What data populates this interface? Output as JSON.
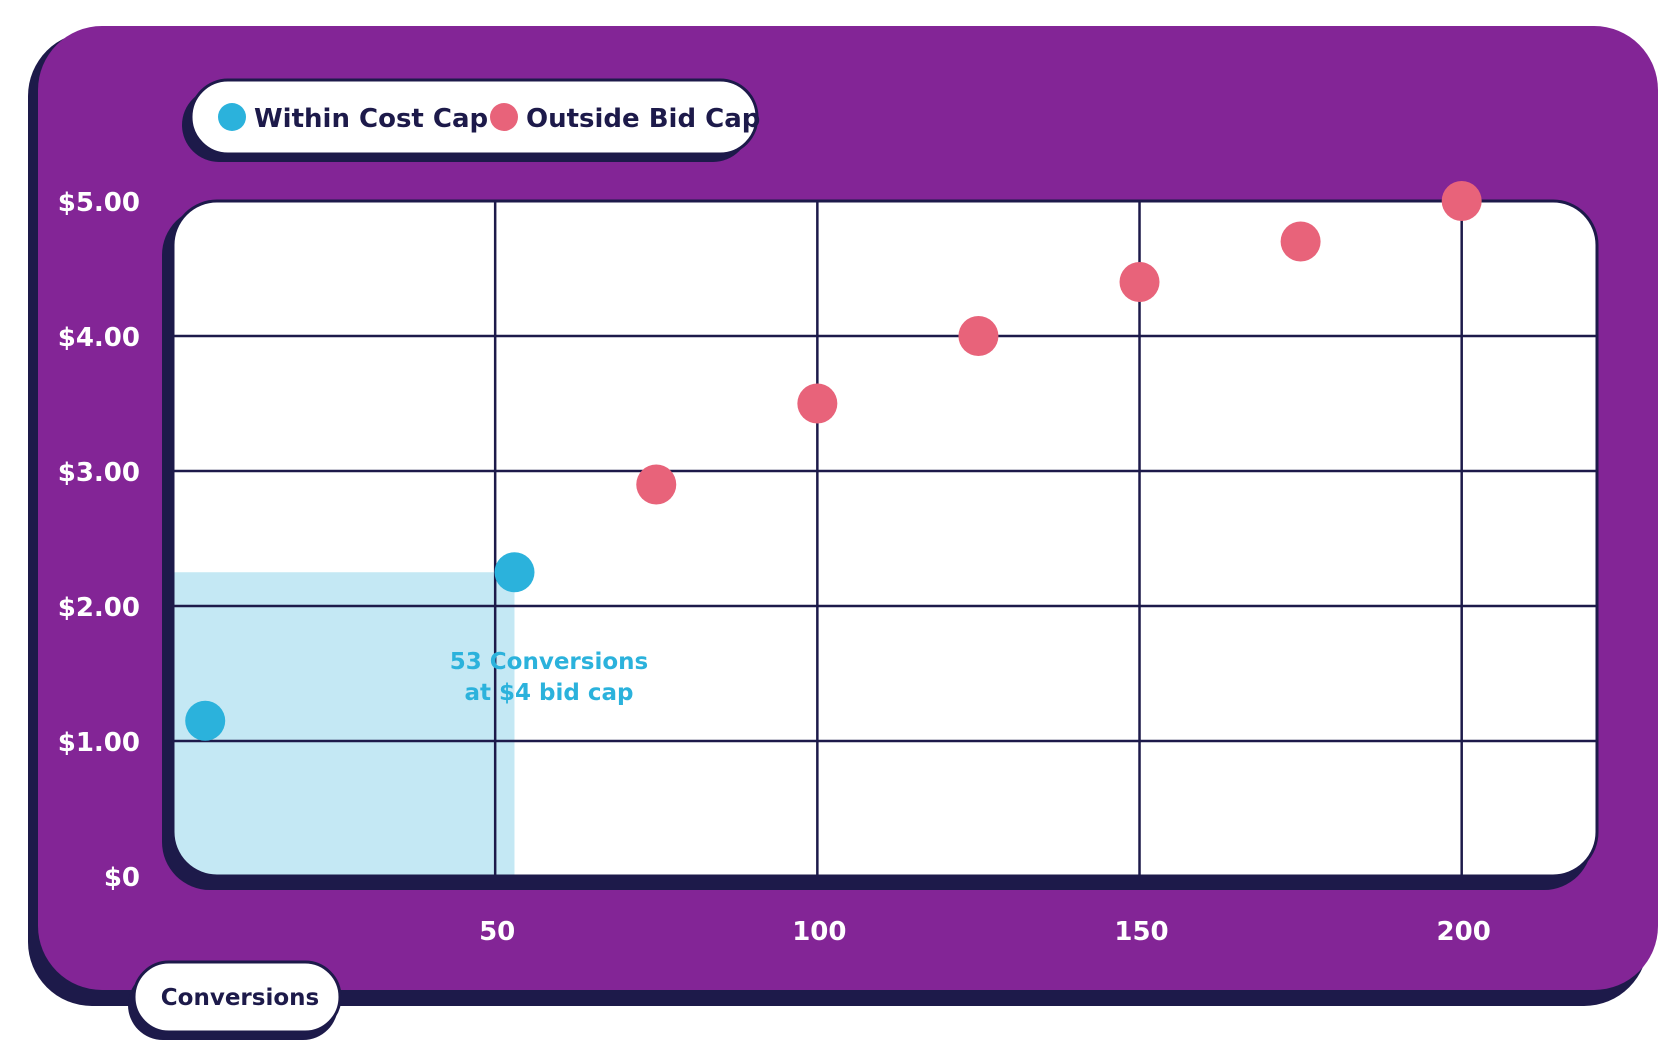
{
  "colors": {
    "frame": "#832596",
    "frame_shadow": "#1d1a4a",
    "plot_bg": "#ffffff",
    "grid": "#1d1a4a",
    "within": "#2bb2dc",
    "outside": "#e8637a",
    "highlight": "#c4e8f4",
    "tick_text": "#ffffff",
    "annotation": "#2bb2dc"
  },
  "legend": {
    "within_label": "Within Cost Cap",
    "outside_label": "Outside Bid Cap"
  },
  "x_axis_pill": {
    "label": "Conversions"
  },
  "annotation": {
    "line1": "53 Conversions",
    "line2": "at $4 bid cap"
  },
  "chart_data": {
    "type": "scatter",
    "xlabel": "Conversions",
    "ylabel": "",
    "xlim": [
      0,
      221
    ],
    "ylim": [
      0,
      5
    ],
    "x_ticks": [
      50,
      100,
      150,
      200
    ],
    "x_tick_labels": [
      "50",
      "100",
      "150",
      "200"
    ],
    "y_ticks": [
      0,
      1,
      2,
      3,
      4,
      5
    ],
    "y_tick_labels": [
      "$0",
      "$1.00",
      "$2.00",
      "$3.00",
      "$4.00",
      "$5.00"
    ],
    "grid": true,
    "legend_position": "top-left",
    "highlight_region": {
      "x": [
        0,
        53
      ],
      "y": [
        0,
        2.25
      ]
    },
    "series": [
      {
        "name": "Within Cost Cap",
        "color": "#2bb2dc",
        "points": [
          {
            "x": 5,
            "y": 1.15
          },
          {
            "x": 53,
            "y": 2.25
          }
        ]
      },
      {
        "name": "Outside Bid Cap",
        "color": "#e8637a",
        "points": [
          {
            "x": 75,
            "y": 2.9
          },
          {
            "x": 100,
            "y": 3.5
          },
          {
            "x": 125,
            "y": 4.0
          },
          {
            "x": 150,
            "y": 4.4
          },
          {
            "x": 175,
            "y": 4.7
          },
          {
            "x": 200,
            "y": 5.0
          }
        ]
      }
    ]
  }
}
